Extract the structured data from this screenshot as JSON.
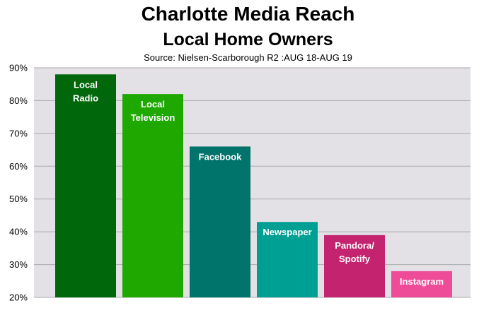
{
  "chart_data": {
    "type": "bar",
    "title": "Charlotte Media Reach",
    "subtitle": "Local Home Owners",
    "source": "Source: Nielsen-Scarborough R2 :AUG 18-AUG 19",
    "categories": [
      "Local Radio",
      "Local Television",
      "Facebook",
      "Newspaper",
      "Pandora/ Spotify",
      "Instagram"
    ],
    "label_lines": [
      [
        "Local",
        "Radio"
      ],
      [
        "Local",
        "Television"
      ],
      [
        "Facebook"
      ],
      [
        "Newspaper"
      ],
      [
        "Pandora/",
        "Spotify"
      ],
      [
        "Instagram"
      ]
    ],
    "values": [
      88,
      82,
      66,
      43,
      39,
      28
    ],
    "colors": [
      "#00680a",
      "#1ea800",
      "#00736b",
      "#009f94",
      "#c4246f",
      "#ee4c98"
    ],
    "ylim": [
      20,
      90
    ],
    "yticks": [
      20,
      30,
      40,
      50,
      60,
      70,
      80,
      90
    ],
    "ytick_labels": [
      "20%",
      "30%",
      "40%",
      "50%",
      "60%",
      "70%",
      "80%",
      "90%"
    ],
    "xlabel": "",
    "ylabel": "",
    "grid": true,
    "plot_background": "#e3e1e6"
  }
}
